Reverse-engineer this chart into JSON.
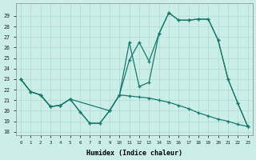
{
  "background_color": "#cceee8",
  "grid_color": "#aaddcc",
  "line_color": "#1a7a6e",
  "xlabel": "Humidex (Indice chaleur)",
  "x_ticks": [
    0,
    1,
    2,
    3,
    4,
    5,
    6,
    7,
    8,
    9,
    10,
    11,
    12,
    13,
    14,
    15,
    16,
    17,
    18,
    19,
    20,
    21,
    22,
    23
  ],
  "yticks": [
    18,
    19,
    20,
    21,
    22,
    23,
    24,
    25,
    26,
    27,
    28,
    29
  ],
  "ylim": [
    17.7,
    30.2
  ],
  "xlim": [
    -0.5,
    23.5
  ],
  "line1_x": [
    0,
    1,
    2,
    3,
    4,
    5,
    6,
    7,
    8,
    9,
    10,
    11,
    12,
    13,
    14,
    15,
    16,
    17,
    18,
    19,
    20,
    21,
    22,
    23
  ],
  "line1_y": [
    23.0,
    21.8,
    21.5,
    20.4,
    20.5,
    21.1,
    19.9,
    18.8,
    18.8,
    20.0,
    21.5,
    26.5,
    22.3,
    22.7,
    27.3,
    29.3,
    28.6,
    28.6,
    28.7,
    28.7,
    26.7,
    23.0,
    20.7,
    18.5
  ],
  "line2_x": [
    0,
    1,
    2,
    3,
    4,
    5,
    9,
    10,
    11,
    12,
    13,
    14,
    15,
    16,
    17,
    18,
    19,
    20,
    21,
    22,
    23
  ],
  "line2_y": [
    23.0,
    21.8,
    21.5,
    20.4,
    20.5,
    21.1,
    20.0,
    21.5,
    24.8,
    26.5,
    24.7,
    27.3,
    29.3,
    28.6,
    28.6,
    28.7,
    28.7,
    26.7,
    23.0,
    20.7,
    18.5
  ],
  "line3_x": [
    0,
    1,
    2,
    3,
    4,
    5,
    6,
    7,
    8,
    9,
    10,
    11,
    12,
    13,
    14,
    15,
    16,
    17,
    18,
    19,
    20,
    21,
    22,
    23
  ],
  "line3_y": [
    23.0,
    21.8,
    21.5,
    20.4,
    20.5,
    21.1,
    19.9,
    18.8,
    18.8,
    20.0,
    21.5,
    21.4,
    21.3,
    21.2,
    21.0,
    20.8,
    20.5,
    20.2,
    19.8,
    19.5,
    19.2,
    19.0,
    18.7,
    18.5
  ]
}
